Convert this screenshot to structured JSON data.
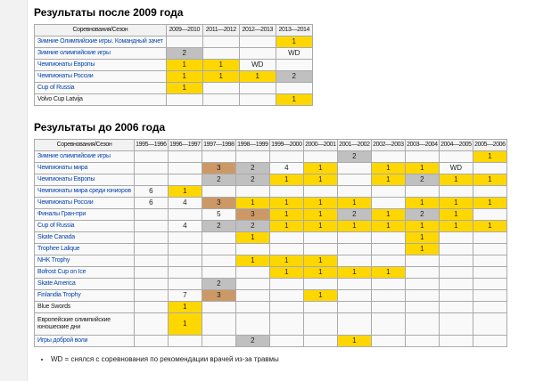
{
  "colors": {
    "gold": "#FFD700",
    "silver": "#C0C0C0",
    "bronze": "#CC9966",
    "link": "#0645AD"
  },
  "footnote": {
    "text": "WD = снялся с соревнования по рекомендации врачей из-за травмы"
  },
  "tables": [
    {
      "title": "Результаты после 2009 года",
      "corner_header": "Соревнования/Сезон",
      "seasons": [
        "2009—2010",
        "2011—2012",
        "2012—2013",
        "2013—2014"
      ],
      "rows": [
        {
          "label": "Зимние Олимпийские игры. Командный зачет",
          "link": true,
          "cells": [
            null,
            null,
            null,
            [
              "1",
              "gold"
            ]
          ]
        },
        {
          "label": "Зимние олимпийские игры",
          "link": true,
          "cells": [
            [
              "2",
              "silver"
            ],
            null,
            null,
            [
              "WD",
              "none"
            ]
          ]
        },
        {
          "label": "Чемпионаты Европы",
          "link": true,
          "cells": [
            [
              "1",
              "gold"
            ],
            [
              "1",
              "gold"
            ],
            [
              "WD",
              "none"
            ],
            null
          ]
        },
        {
          "label": "Чемпионаты России",
          "link": true,
          "cells": [
            [
              "1",
              "gold"
            ],
            [
              "1",
              "gold"
            ],
            [
              "1",
              "gold"
            ],
            [
              "2",
              "silver"
            ]
          ]
        },
        {
          "label": "Cup of Russia",
          "link": true,
          "cells": [
            [
              "1",
              "gold"
            ],
            null,
            null,
            null
          ]
        },
        {
          "label": "Volvo Cup Latvija",
          "link": false,
          "cells": [
            null,
            null,
            null,
            [
              "1",
              "gold"
            ]
          ]
        }
      ]
    },
    {
      "title": "Результаты до 2006 года",
      "corner_header": "Соревнования/Сезон",
      "seasons": [
        "1995—1996",
        "1996—1997",
        "1997—1998",
        "1998—1999",
        "1999—2000",
        "2000—2001",
        "2001—2002",
        "2002—2003",
        "2003—2004",
        "2004—2005",
        "2005—2006"
      ],
      "rows": [
        {
          "label": "Зимние олимпийские игры",
          "link": true,
          "cells": [
            null,
            null,
            null,
            null,
            null,
            null,
            [
              "2",
              "silver"
            ],
            null,
            null,
            null,
            [
              "1",
              "gold"
            ]
          ]
        },
        {
          "label": "Чемпионаты мира",
          "link": true,
          "cells": [
            null,
            null,
            [
              "3",
              "bronze"
            ],
            [
              "2",
              "silver"
            ],
            [
              "4",
              "none"
            ],
            [
              "1",
              "gold"
            ],
            null,
            [
              "1",
              "gold"
            ],
            [
              "1",
              "gold"
            ],
            [
              "WD",
              "none"
            ],
            null
          ]
        },
        {
          "label": "Чемпионаты Европы",
          "link": true,
          "cells": [
            null,
            null,
            [
              "2",
              "silver"
            ],
            [
              "2",
              "silver"
            ],
            [
              "1",
              "gold"
            ],
            [
              "1",
              "gold"
            ],
            null,
            [
              "1",
              "gold"
            ],
            [
              "2",
              "silver"
            ],
            [
              "1",
              "gold"
            ],
            [
              "1",
              "gold"
            ]
          ]
        },
        {
          "label": "Чемпионаты мира среди юниоров",
          "link": true,
          "cells": [
            [
              "6",
              "none"
            ],
            [
              "1",
              "gold"
            ],
            null,
            null,
            null,
            null,
            null,
            null,
            null,
            null,
            null
          ]
        },
        {
          "label": "Чемпионаты России",
          "link": true,
          "cells": [
            [
              "6",
              "none"
            ],
            [
              "4",
              "none"
            ],
            [
              "3",
              "bronze"
            ],
            [
              "1",
              "gold"
            ],
            [
              "1",
              "gold"
            ],
            [
              "1",
              "gold"
            ],
            [
              "1",
              "gold"
            ],
            null,
            [
              "1",
              "gold"
            ],
            [
              "1",
              "gold"
            ],
            [
              "1",
              "gold"
            ]
          ]
        },
        {
          "label": "Финалы Гран-при",
          "link": true,
          "cells": [
            null,
            null,
            [
              "5",
              "none"
            ],
            [
              "3",
              "bronze"
            ],
            [
              "1",
              "gold"
            ],
            [
              "1",
              "gold"
            ],
            [
              "2",
              "silver"
            ],
            [
              "1",
              "gold"
            ],
            [
              "2",
              "silver"
            ],
            [
              "1",
              "gold"
            ],
            null
          ]
        },
        {
          "label": "Cup of Russia",
          "link": true,
          "cells": [
            null,
            [
              "4",
              "none"
            ],
            [
              "2",
              "silver"
            ],
            [
              "2",
              "silver"
            ],
            [
              "1",
              "gold"
            ],
            [
              "1",
              "gold"
            ],
            [
              "1",
              "gold"
            ],
            [
              "1",
              "gold"
            ],
            [
              "1",
              "gold"
            ],
            [
              "1",
              "gold"
            ],
            [
              "1",
              "gold"
            ]
          ]
        },
        {
          "label": "Skate Canada",
          "link": true,
          "cells": [
            null,
            null,
            null,
            [
              "1",
              "gold"
            ],
            null,
            null,
            null,
            null,
            [
              "1",
              "gold"
            ],
            null,
            null
          ]
        },
        {
          "label": "Trophee Lalique",
          "link": true,
          "cells": [
            null,
            null,
            null,
            null,
            null,
            null,
            null,
            null,
            [
              "1",
              "gold"
            ],
            null,
            null
          ]
        },
        {
          "label": "NHK Trophy",
          "link": true,
          "cells": [
            null,
            null,
            null,
            [
              "1",
              "gold"
            ],
            [
              "1",
              "gold"
            ],
            [
              "1",
              "gold"
            ],
            null,
            null,
            null,
            null,
            null
          ]
        },
        {
          "label": "Bofrost Cup on Ice",
          "link": true,
          "cells": [
            null,
            null,
            null,
            null,
            [
              "1",
              "gold"
            ],
            [
              "1",
              "gold"
            ],
            [
              "1",
              "gold"
            ],
            [
              "1",
              "gold"
            ],
            null,
            null,
            null
          ]
        },
        {
          "label": "Skate America",
          "link": true,
          "cells": [
            null,
            null,
            [
              "2",
              "silver"
            ],
            null,
            null,
            null,
            null,
            null,
            null,
            null,
            null
          ]
        },
        {
          "label": "Finlandia Trophy",
          "link": true,
          "cells": [
            null,
            [
              "7",
              "none"
            ],
            [
              "3",
              "bronze"
            ],
            null,
            null,
            [
              "1",
              "gold"
            ],
            null,
            null,
            null,
            null,
            null
          ]
        },
        {
          "label": "Blue Swords",
          "link": false,
          "cells": [
            null,
            [
              "1",
              "gold"
            ],
            null,
            null,
            null,
            null,
            null,
            null,
            null,
            null,
            null
          ]
        },
        {
          "label": "Европейские олимпийские юношеские дни",
          "link": false,
          "cells": [
            null,
            [
              "1",
              "gold"
            ],
            null,
            null,
            null,
            null,
            null,
            null,
            null,
            null,
            null
          ]
        },
        {
          "label": "Игры доброй воли",
          "link": true,
          "cells": [
            null,
            null,
            null,
            [
              "2",
              "silver"
            ],
            null,
            null,
            [
              "1",
              "gold"
            ],
            null,
            null,
            null,
            null
          ]
        }
      ]
    }
  ]
}
